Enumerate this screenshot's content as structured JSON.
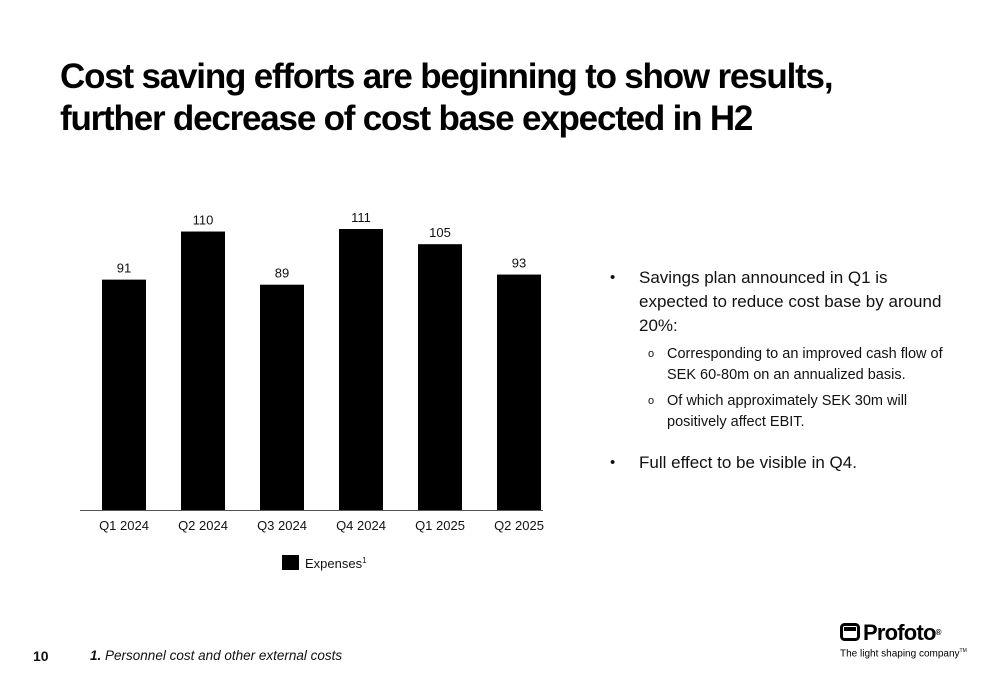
{
  "title": {
    "line1": "Cost saving efforts are beginning to show results,",
    "line2": "further decrease of cost base expected in H2"
  },
  "chart_data": {
    "type": "bar",
    "categories": [
      "Q1 2024",
      "Q2 2024",
      "Q3 2024",
      "Q4 2024",
      "Q1 2025",
      "Q2 2025"
    ],
    "series": [
      {
        "name": "Expenses",
        "values": [
          91,
          110,
          89,
          111,
          105,
          93
        ]
      }
    ],
    "data_labels": [
      "91",
      "110",
      "89",
      "111",
      "105",
      "93"
    ],
    "legend": {
      "label": "Expenses",
      "footnote_marker": "1",
      "placement": "bottom-center"
    },
    "title": "",
    "xlabel": "",
    "ylabel": "",
    "ylim": [
      0,
      111
    ],
    "grid": false,
    "bar_color": "#000000"
  },
  "bullets": {
    "items": [
      {
        "marker": "•",
        "text": "Savings plan announced in Q1 is expected to reduce cost base by around 20%:",
        "sub": [
          {
            "marker": "o",
            "text": "Corresponding to an improved cash flow of SEK 60-80m on an annualized basis."
          },
          {
            "marker": "o",
            "text": "Of which approximately SEK 30m will positively affect EBIT."
          }
        ]
      },
      {
        "marker": "•",
        "text": "Full effect to be visible in Q4.",
        "sub": []
      }
    ]
  },
  "footer": {
    "page_number": "10",
    "footnote_number": "1.",
    "footnote_text": "Personnel cost and other external costs"
  },
  "logo": {
    "wordmark": "Profoto",
    "registered": "®",
    "tagline": "The light shaping company",
    "tagline_mark": "TM",
    "icon": "profoto-logo-icon"
  }
}
